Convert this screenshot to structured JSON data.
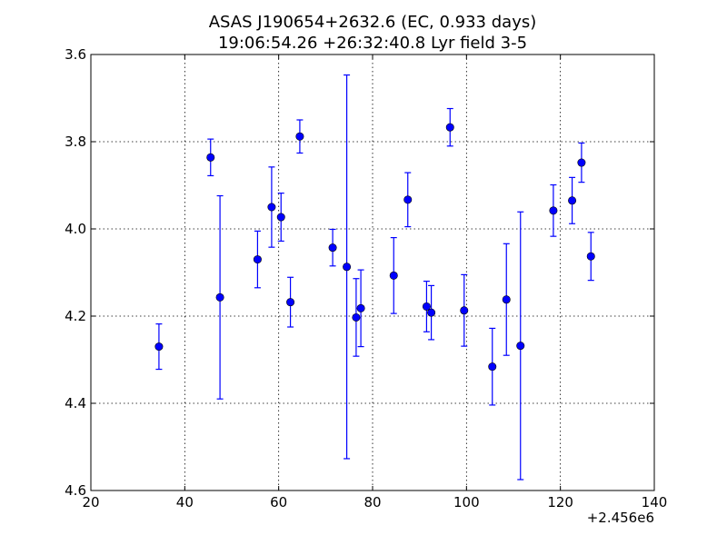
{
  "chart_data": {
    "type": "scatter",
    "title": "ASAS J190654+2632.6 (EC, 0.933 days)",
    "subtitle": "19:06:54.26 +26:32:40.8 Lyr field 3-5",
    "xlabel": "",
    "ylabel": "",
    "xlim": [
      20,
      140
    ],
    "ylim": [
      4.6,
      3.6
    ],
    "y_inverted": true,
    "x_offset_label": "+2.456e6",
    "xticks": [
      20,
      40,
      60,
      80,
      100,
      120,
      140
    ],
    "xtick_labels": [
      "20",
      "40",
      "60",
      "80",
      "100",
      "120",
      "140"
    ],
    "yticks": [
      3.6,
      3.8,
      4.0,
      4.2,
      4.4,
      4.6
    ],
    "ytick_labels": [
      "3.6",
      "3.8",
      "4.0",
      "4.2",
      "4.4",
      "4.6"
    ],
    "grid": true,
    "marker_color": "#0000ff",
    "points": [
      {
        "x": 34.5,
        "y": 4.27,
        "err": 0.052
      },
      {
        "x": 45.5,
        "y": 3.836,
        "err": 0.042
      },
      {
        "x": 47.5,
        "y": 4.157,
        "err": 0.233
      },
      {
        "x": 55.5,
        "y": 4.07,
        "err": 0.065
      },
      {
        "x": 58.5,
        "y": 3.95,
        "err": 0.092
      },
      {
        "x": 60.5,
        "y": 3.973,
        "err": 0.055
      },
      {
        "x": 62.5,
        "y": 4.168,
        "err": 0.057
      },
      {
        "x": 64.5,
        "y": 3.788,
        "err": 0.038
      },
      {
        "x": 71.5,
        "y": 4.043,
        "err": 0.042
      },
      {
        "x": 74.5,
        "y": 4.087,
        "err": 0.44
      },
      {
        "x": 76.5,
        "y": 4.203,
        "err": 0.089
      },
      {
        "x": 77.5,
        "y": 4.182,
        "err": 0.088
      },
      {
        "x": 84.5,
        "y": 4.107,
        "err": 0.087
      },
      {
        "x": 87.5,
        "y": 3.933,
        "err": 0.062
      },
      {
        "x": 91.5,
        "y": 4.178,
        "err": 0.058
      },
      {
        "x": 92.5,
        "y": 4.192,
        "err": 0.062
      },
      {
        "x": 96.5,
        "y": 3.767,
        "err": 0.043
      },
      {
        "x": 99.5,
        "y": 4.187,
        "err": 0.082
      },
      {
        "x": 105.5,
        "y": 4.316,
        "err": 0.088
      },
      {
        "x": 108.5,
        "y": 4.162,
        "err": 0.128
      },
      {
        "x": 111.5,
        "y": 4.268,
        "err": 0.307
      },
      {
        "x": 118.5,
        "y": 3.958,
        "err": 0.059
      },
      {
        "x": 122.5,
        "y": 3.935,
        "err": 0.053
      },
      {
        "x": 124.5,
        "y": 3.848,
        "err": 0.045
      },
      {
        "x": 126.5,
        "y": 4.063,
        "err": 0.055
      }
    ]
  }
}
